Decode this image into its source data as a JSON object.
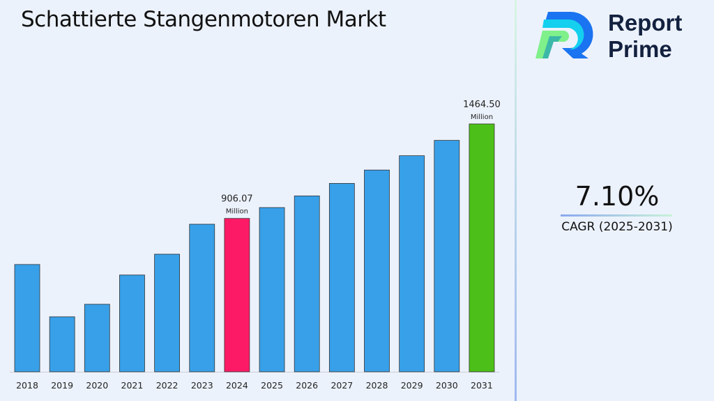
{
  "title": "Schattierte Stangenmotoren Markt",
  "logo": {
    "line1": "Report",
    "line2": "Prime"
  },
  "cagr": {
    "value": "7.10%",
    "label": "CAGR (2025-2031)"
  },
  "chart_data": {
    "type": "bar",
    "title": "Schattierte Stangenmotoren Markt",
    "xlabel": "",
    "ylabel": "",
    "categories": [
      "2018",
      "2019",
      "2020",
      "2021",
      "2022",
      "2023",
      "2024",
      "2025",
      "2026",
      "2027",
      "2028",
      "2029",
      "2030",
      "2031"
    ],
    "values": [
      634,
      325,
      399,
      572,
      695,
      872,
      906.07,
      970.4,
      1039.3,
      1113.1,
      1192.1,
      1276.8,
      1367.4,
      1464.5
    ],
    "colors": {
      "default": "#38a0e8",
      "2024": "#fc1a66",
      "2031": "#4cc018"
    },
    "annotations": [
      {
        "category": "2024",
        "value": "906.07",
        "unit": "Million"
      },
      {
        "category": "2031",
        "value": "1464.50",
        "unit": "Million"
      }
    ],
    "ylim": [
      0,
      1464.5
    ],
    "grid": false
  }
}
